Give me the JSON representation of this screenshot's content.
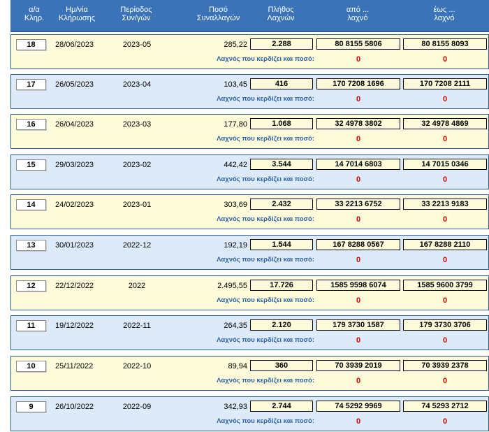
{
  "header": {
    "col1": [
      "α/α",
      "Κληρ."
    ],
    "col2": [
      "Ημ/νία",
      "Κλήρωσης"
    ],
    "col3": [
      "Περίοδος",
      "Συν/γών"
    ],
    "col4": [
      "Ποσό",
      "Συναλλαγών"
    ],
    "col5": [
      "Πλήθος",
      "Λαχνών"
    ],
    "col6": [
      "από ...",
      "λαχνό"
    ],
    "col7": [
      "έως ...",
      "λαχνό"
    ]
  },
  "win_question": "Λαχνός που κερδίζει και ποσό:",
  "rows": [
    {
      "num": "18",
      "date": "28/06/2023",
      "period": "2023-05",
      "amount": "285,22",
      "count": "2.288",
      "from": "80 8155 5806",
      "to": "80 8155 8093",
      "win_from": "0",
      "win_to": "0",
      "style": "yellow"
    },
    {
      "num": "17",
      "date": "26/05/2023",
      "period": "2023-04",
      "amount": "103,45",
      "count": "416",
      "from": "170 7208 1696",
      "to": "170 7208 2111",
      "win_from": "0",
      "win_to": "0",
      "style": "blue"
    },
    {
      "num": "16",
      "date": "26/04/2023",
      "period": "2023-03",
      "amount": "177,80",
      "count": "1.068",
      "from": "32 4978 3802",
      "to": "32 4978 4869",
      "win_from": "0",
      "win_to": "0",
      "style": "yellow"
    },
    {
      "num": "15",
      "date": "29/03/2023",
      "period": "2023-02",
      "amount": "442,42",
      "count": "3.544",
      "from": "14 7014 6803",
      "to": "14 7015 0346",
      "win_from": "0",
      "win_to": "0",
      "style": "blue"
    },
    {
      "num": "14",
      "date": "24/02/2023",
      "period": "2023-01",
      "amount": "303,69",
      "count": "2.432",
      "from": "33 2213 6752",
      "to": "33 2213 9183",
      "win_from": "0",
      "win_to": "0",
      "style": "yellow"
    },
    {
      "num": "13",
      "date": "30/01/2023",
      "period": "2022-12",
      "amount": "192,19",
      "count": "1.544",
      "from": "167 8288 0567",
      "to": "167 8288 2110",
      "win_from": "0",
      "win_to": "0",
      "style": "blue"
    },
    {
      "num": "12",
      "date": "22/12/2022",
      "period": "2022",
      "amount": "2.495,55",
      "count": "17.726",
      "from": "1585 9598 6074",
      "to": "1585 9600 3799",
      "win_from": "0",
      "win_to": "0",
      "style": "yellow"
    },
    {
      "num": "11",
      "date": "19/12/2022",
      "period": "2022-11",
      "amount": "264,35",
      "count": "2.120",
      "from": "179 3730 1587",
      "to": "179 3730 3706",
      "win_from": "0",
      "win_to": "0",
      "style": "blue"
    },
    {
      "num": "10",
      "date": "25/11/2022",
      "period": "2022-10",
      "amount": "89,94",
      "count": "360",
      "from": "70 3939 2019",
      "to": "70 3939 2378",
      "win_from": "0",
      "win_to": "0",
      "style": "yellow"
    },
    {
      "num": "9",
      "date": "26/10/2022",
      "period": "2022-09",
      "amount": "342,93",
      "count": "2.744",
      "from": "74 5292 9969",
      "to": "74 5293 2712",
      "win_from": "0",
      "win_to": "0",
      "style": "blue"
    }
  ]
}
